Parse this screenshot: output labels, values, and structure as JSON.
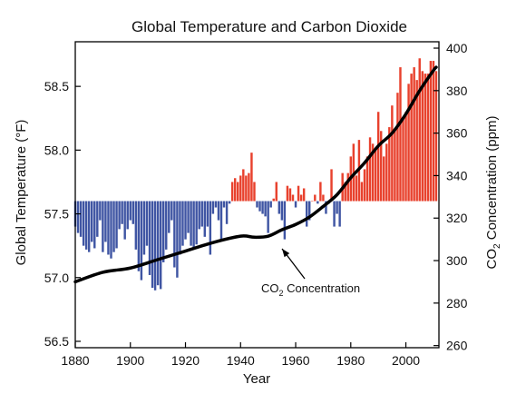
{
  "chart_data": {
    "type": "bar",
    "title": "Global Temperature and Carbon Dioxide",
    "xlabel": "Year",
    "ylabel_left": "Global Temperature (°F)",
    "ylabel_right": {
      "prefix": "CO",
      "subscript": "2",
      "suffix": " Concentration (ppm)"
    },
    "xlim": [
      1880,
      2012
    ],
    "ylim_left": [
      56.45,
      58.85
    ],
    "ylim_right": [
      259,
      403
    ],
    "baseline": 57.6,
    "x_ticks": [
      "1880",
      "1900",
      "1920",
      "1940",
      "1960",
      "1980",
      "2000"
    ],
    "y_ticks_left": [
      "56.5",
      "57.0",
      "57.5",
      "58.0",
      "58.5"
    ],
    "y_ticks_right": [
      "260",
      "280",
      "300",
      "320",
      "340",
      "360",
      "380",
      "400"
    ],
    "grid": false,
    "colors": {
      "warm": "#e8412d",
      "cool": "#3f55a3",
      "co2_line": "#000000"
    },
    "series": [
      {
        "type": "bar",
        "x": [
          1880,
          1881,
          1882,
          1883,
          1884,
          1885,
          1886,
          1887,
          1888,
          1889,
          1890,
          1891,
          1892,
          1893,
          1894,
          1895,
          1896,
          1897,
          1898,
          1899,
          1900,
          1901,
          1902,
          1903,
          1904,
          1905,
          1906,
          1907,
          1908,
          1909,
          1910,
          1911,
          1912,
          1913,
          1914,
          1915,
          1916,
          1917,
          1918,
          1919,
          1920,
          1921,
          1922,
          1923,
          1924,
          1925,
          1926,
          1927,
          1928,
          1929,
          1930,
          1931,
          1932,
          1933,
          1934,
          1935,
          1936,
          1937,
          1938,
          1939,
          1940,
          1941,
          1942,
          1943,
          1944,
          1945,
          1946,
          1947,
          1948,
          1949,
          1950,
          1951,
          1952,
          1953,
          1954,
          1955,
          1956,
          1957,
          1958,
          1959,
          1960,
          1961,
          1962,
          1963,
          1964,
          1965,
          1966,
          1967,
          1968,
          1969,
          1970,
          1971,
          1972,
          1973,
          1974,
          1975,
          1976,
          1977,
          1978,
          1979,
          1980,
          1981,
          1982,
          1983,
          1984,
          1985,
          1986,
          1987,
          1988,
          1989,
          1990,
          1991,
          1992,
          1993,
          1994,
          1995,
          1996,
          1997,
          1998,
          1999,
          2000,
          2001,
          2002,
          2003,
          2004,
          2005,
          2006,
          2007,
          2008,
          2009,
          2010,
          2011
        ],
        "values": [
          57.4,
          57.35,
          57.32,
          57.25,
          57.22,
          57.2,
          57.28,
          57.23,
          57.32,
          57.45,
          57.2,
          57.28,
          57.18,
          57.15,
          57.2,
          57.23,
          57.38,
          57.42,
          57.3,
          57.38,
          57.45,
          57.42,
          57.22,
          57.05,
          56.98,
          57.18,
          57.25,
          57.02,
          56.92,
          56.9,
          56.94,
          56.91,
          57.12,
          57.22,
          57.35,
          57.45,
          57.08,
          57.0,
          57.18,
          57.25,
          57.3,
          57.35,
          57.25,
          57.22,
          57.26,
          57.38,
          57.4,
          57.32,
          57.4,
          57.18,
          57.5,
          57.55,
          57.45,
          57.3,
          57.55,
          57.42,
          57.58,
          57.75,
          57.78,
          57.75,
          57.8,
          57.85,
          57.8,
          57.82,
          57.98,
          57.75,
          57.55,
          57.52,
          57.5,
          57.48,
          57.35,
          57.55,
          57.62,
          57.75,
          57.5,
          57.45,
          57.3,
          57.72,
          57.7,
          57.65,
          57.55,
          57.72,
          57.65,
          57.7,
          57.4,
          57.45,
          57.6,
          57.65,
          57.58,
          57.75,
          57.65,
          57.5,
          57.58,
          57.85,
          57.4,
          57.5,
          57.4,
          57.82,
          57.75,
          57.82,
          57.95,
          58.05,
          57.8,
          58.08,
          57.75,
          57.85,
          57.95,
          58.1,
          58.05,
          58.0,
          58.3,
          58.15,
          57.95,
          58.05,
          58.18,
          58.35,
          58.15,
          58.45,
          58.65,
          58.25,
          58.3,
          58.52,
          58.6,
          58.65,
          58.55,
          58.72,
          58.62,
          58.6,
          58.6,
          58.7,
          58.7,
          58.62
        ]
      },
      {
        "type": "line",
        "name": "CO2 Concentration",
        "axis": "right",
        "x": [
          1880,
          1890,
          1900,
          1910,
          1920,
          1930,
          1940,
          1945,
          1950,
          1955,
          1960,
          1965,
          1970,
          1975,
          1980,
          1985,
          1990,
          1995,
          2000,
          2005,
          2010,
          2011
        ],
        "values": [
          290,
          294.5,
          296.5,
          300.5,
          304.5,
          308.5,
          311.5,
          311,
          311.5,
          314.5,
          317,
          320.5,
          325.5,
          331,
          339,
          346,
          354,
          360,
          369,
          380,
          389.5,
          391
        ]
      }
    ],
    "annotations": [
      {
        "prefix": "CO",
        "subscript": "2",
        "suffix": " Concentration",
        "points_to_year": 1950
      }
    ]
  }
}
